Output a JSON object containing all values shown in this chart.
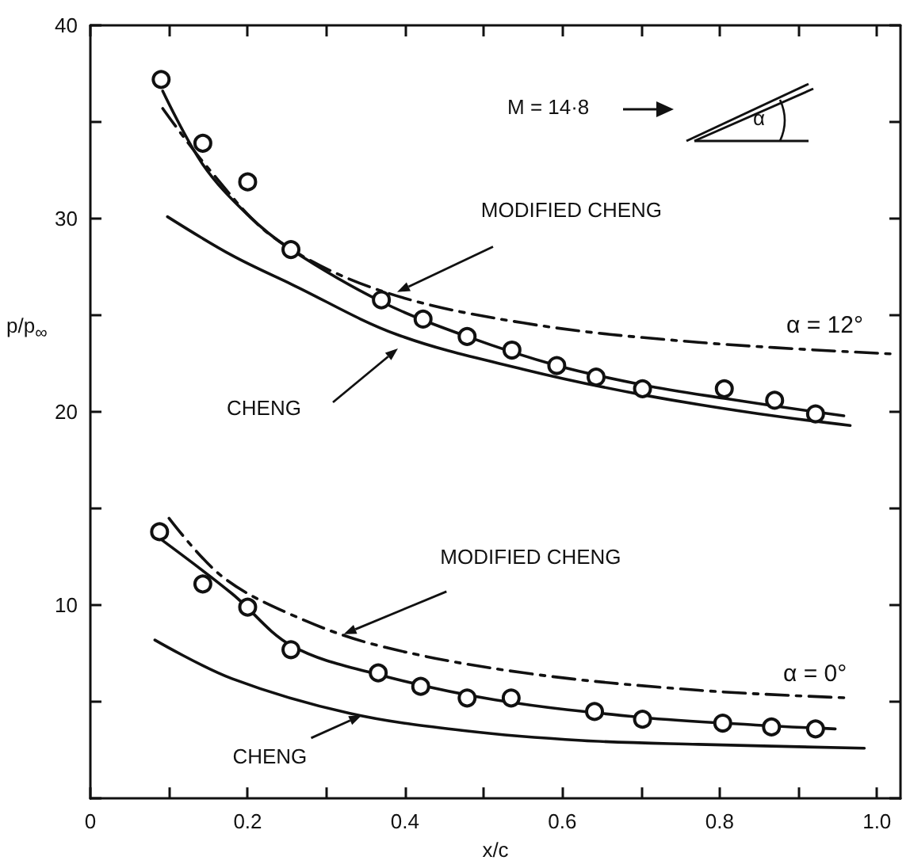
{
  "chart_data": {
    "type": "line",
    "xlabel": "x/c",
    "ylabel": "p/p$_{∞}$",
    "xlim": [
      0,
      1.03
    ],
    "ylim": [
      0,
      40
    ],
    "xticks": [
      0,
      {
        "value": 0.1,
        "label": null
      },
      {
        "value": 0.2,
        "label": "0.2"
      },
      {
        "value": 0.3,
        "label": null
      },
      {
        "value": 0.4,
        "label": "0.4"
      },
      {
        "value": 0.5,
        "label": null
      },
      {
        "value": 0.6,
        "label": "0.6"
      },
      {
        "value": 0.7,
        "label": null
      },
      {
        "value": 0.8,
        "label": "0.8"
      },
      {
        "value": 0.9,
        "label": null
      },
      {
        "value": 1.0,
        "label": "1.0"
      }
    ],
    "yticks": [
      {
        "value": 0,
        "label": null
      },
      {
        "value": 5,
        "label": null
      },
      10,
      {
        "value": 15,
        "label": null
      },
      20,
      {
        "value": 25,
        "label": null
      },
      30,
      {
        "value": 35,
        "label": null
      },
      40
    ],
    "grid": false,
    "series": [
      {
        "type": "scatter",
        "marker": "circle",
        "color": "#111111",
        "x": [
          0.09,
          0.143,
          0.2,
          0.255,
          0.37,
          0.423,
          0.479,
          0.536,
          0.593,
          0.643,
          0.702,
          0.806,
          0.87,
          0.922
        ],
        "values": [
          37.2,
          33.9,
          31.9,
          28.4,
          25.8,
          24.8,
          23.9,
          23.2,
          22.4,
          21.8,
          21.2,
          21.2,
          20.6,
          19.9
        ]
      },
      {
        "type": "line",
        "marker": "none",
        "line_style": "solid",
        "color": "#111111",
        "x": [
          0.092,
          0.143,
          0.2,
          0.255,
          0.37,
          0.479,
          0.593,
          0.702,
          0.806,
          0.922,
          0.958
        ],
        "values": [
          36.6,
          32.8,
          30.2,
          28.4,
          25.7,
          23.9,
          22.4,
          21.4,
          20.7,
          20.0,
          19.8
        ]
      },
      {
        "type": "line",
        "marker": "none",
        "line_style": "solid",
        "color": "#111111",
        "x": [
          0.098,
          0.18,
          0.256,
          0.39,
          0.551,
          0.7,
          0.85,
          0.966
        ],
        "values": [
          30.1,
          28.1,
          26.6,
          24.0,
          22.2,
          20.9,
          19.9,
          19.3
        ]
      },
      {
        "type": "line",
        "marker": "none",
        "line_style": "dashed",
        "color": "#111111",
        "x": [
          0.092,
          0.152,
          0.234,
          0.367,
          0.551,
          0.773,
          1.02
        ],
        "values": [
          35.7,
          32.5,
          29.0,
          26.3,
          24.6,
          23.6,
          23.0
        ]
      },
      {
        "type": "scatter",
        "marker": "circle",
        "color": "#111111",
        "x": [
          0.088,
          0.143,
          0.2,
          0.255,
          0.366,
          0.42,
          0.479,
          0.535,
          0.641,
          0.702,
          0.804,
          0.866,
          0.922
        ],
        "values": [
          13.8,
          11.1,
          9.9,
          7.7,
          6.5,
          5.8,
          5.2,
          5.2,
          4.5,
          4.1,
          3.9,
          3.7,
          3.6
        ]
      },
      {
        "type": "line",
        "marker": "none",
        "line_style": "solid",
        "color": "#111111",
        "x": [
          0.09,
          0.18,
          0.256,
          0.367,
          0.515,
          0.7,
          0.846,
          0.947
        ],
        "values": [
          13.4,
          10.6,
          7.9,
          6.4,
          5.1,
          4.2,
          3.8,
          3.6
        ]
      },
      {
        "type": "line",
        "marker": "none",
        "line_style": "solid",
        "color": "#111111",
        "x": [
          0.082,
          0.18,
          0.33,
          0.477,
          0.625,
          0.773,
          0.984
        ],
        "values": [
          8.2,
          6.2,
          4.4,
          3.5,
          3.0,
          2.8,
          2.6
        ]
      },
      {
        "type": "line",
        "marker": "none",
        "line_style": "dashed",
        "color": "#111111",
        "x": [
          0.1,
          0.167,
          0.256,
          0.367,
          0.551,
          0.773,
          0.966
        ],
        "values": [
          14.5,
          11.5,
          9.5,
          7.9,
          6.5,
          5.6,
          5.2
        ]
      }
    ],
    "annotations": [
      "M = 14·8",
      {
        "text": "MODIFIED CHENG",
        "x": 0.39,
        "y": 26.2
      },
      "CHENG",
      "α = 12°",
      {
        "text": "MODIFIED CHENG",
        "x": 0.322,
        "y": 8.5
      },
      {
        "text": "CHENG",
        "x": 0.345,
        "y": 4.3
      },
      "α = 0°",
      "α"
    ]
  }
}
